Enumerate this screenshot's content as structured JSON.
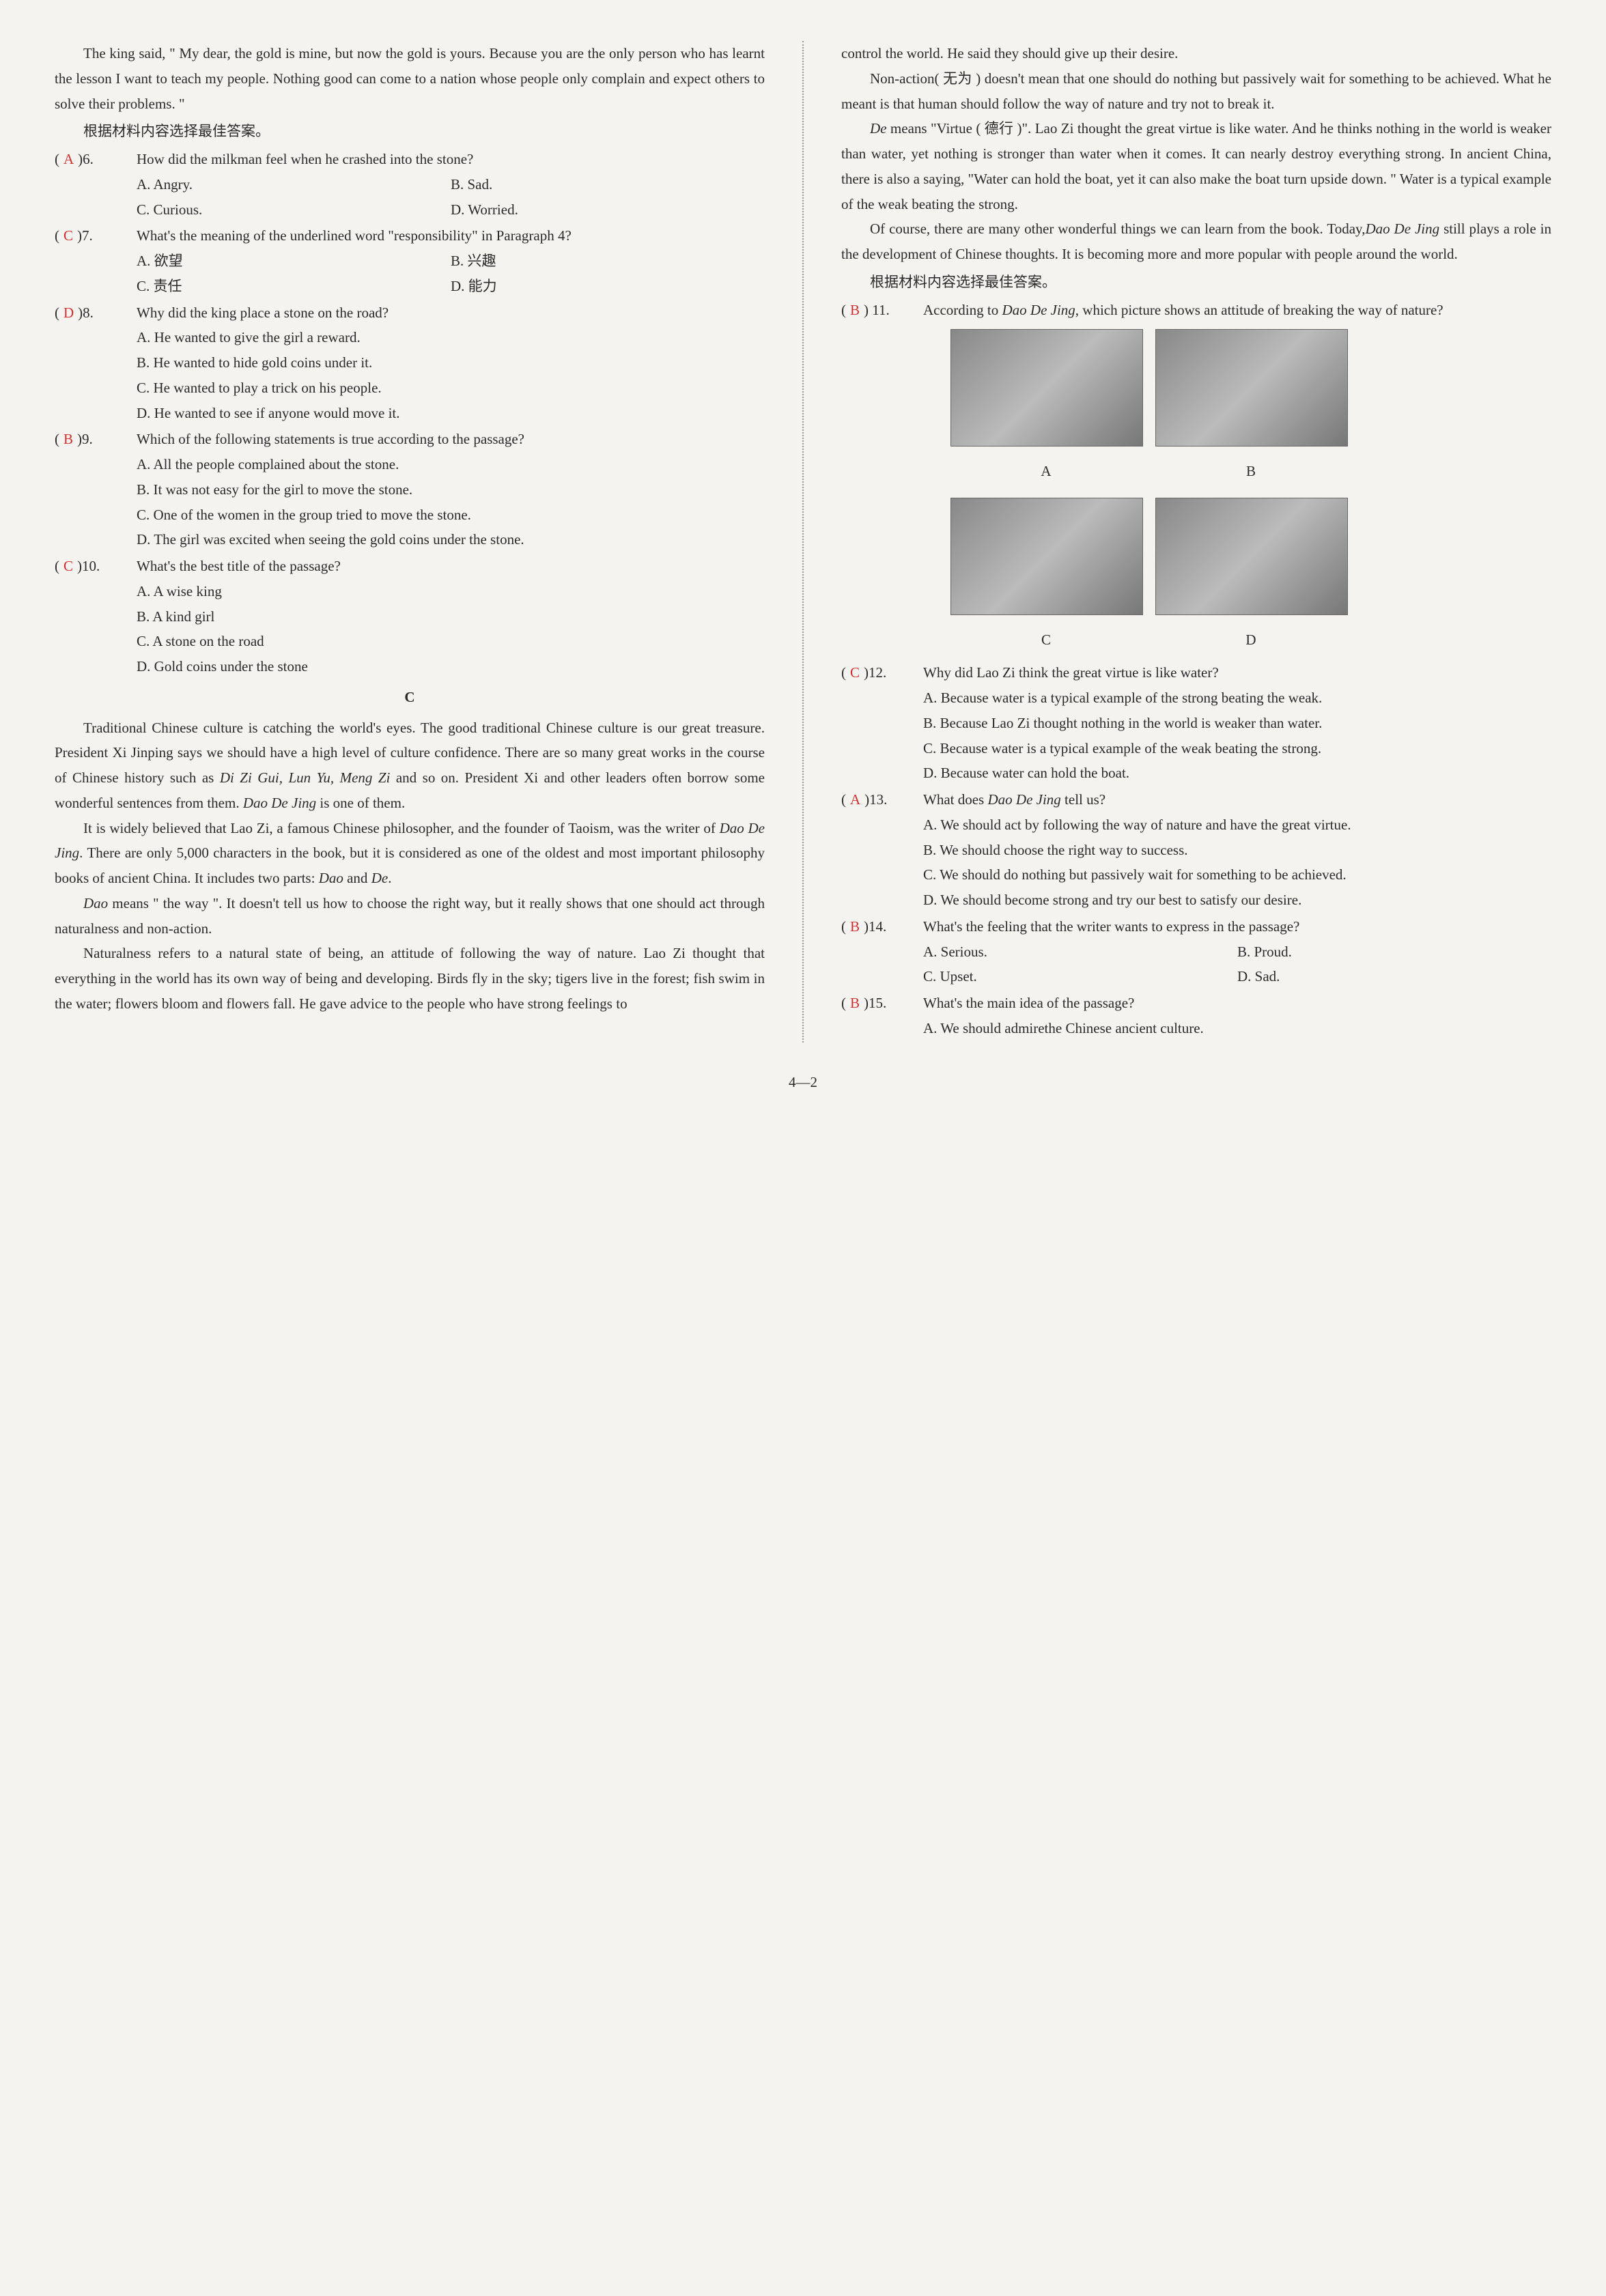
{
  "colors": {
    "answer_color": "#d03030",
    "text_color": "#2a2a2a",
    "background": "#f5f3f0",
    "divider_color": "#999999"
  },
  "typography": {
    "font_family": "Times New Roman",
    "body_fontsize_pt": 16,
    "line_height": 1.75
  },
  "left": {
    "passage_b_end": "The king said, \" My dear, the gold is mine, but now the gold is yours. Because you are the only person who has learnt the lesson I want to teach my people. Nothing good can come to a nation whose people only complain and expect others to solve their problems. \"",
    "instruction": "根据材料内容选择最佳答案。",
    "q6": {
      "answer": "A",
      "num": "6.",
      "stem": "How did the milkman feel when he crashed into the stone?",
      "a": "A. Angry.",
      "b": "B. Sad.",
      "c": "C. Curious.",
      "d": "D. Worried."
    },
    "q7": {
      "answer": "C",
      "num": "7.",
      "stem": "What's the meaning of the underlined word \"responsibility\" in Paragraph 4?",
      "a": "A. 欲望",
      "b": "B. 兴趣",
      "c": "C. 责任",
      "d": "D. 能力"
    },
    "q8": {
      "answer": "D",
      "num": "8.",
      "stem": "Why did the king place a stone on the road?",
      "a": "A. He wanted to give the girl a reward.",
      "b": "B. He wanted to hide gold coins under it.",
      "c": "C. He wanted to play a trick on his people.",
      "d": "D. He wanted to see if anyone would move it."
    },
    "q9": {
      "answer": "B",
      "num": "9.",
      "stem": "Which of the following statements is true according to the passage?",
      "a": "A. All the people complained about the stone.",
      "b": "B. It was not easy for the girl to move the stone.",
      "c": "C. One of the women in the group tried to move the stone.",
      "d": "D. The girl was excited when seeing the gold coins under the stone."
    },
    "q10": {
      "answer": "C",
      "num": "10.",
      "stem": "What's the best title of the passage?",
      "a": "A. A wise king",
      "b": "B. A kind girl",
      "c": "C. A stone on the road",
      "d": "D. Gold coins under the stone"
    },
    "section_c": "C",
    "passage_c_p1a": "Traditional Chinese culture is catching the world's eyes. The good traditional Chinese culture is our great treasure. President Xi Jinping says we should have a high level of culture confidence. There are so many great works in the course of Chinese history such as ",
    "passage_c_titles": "Di Zi Gui, Lun Yu, Meng Zi",
    "passage_c_p1b": " and so on. President Xi and other leaders often borrow some wonderful sentences from them. ",
    "passage_c_ddj1": "Dao De Jing",
    "passage_c_p1c": " is one of them.",
    "passage_c_p2a": "It is widely believed that Lao Zi, a famous Chinese philosopher, and the founder of Taoism, was the writer of ",
    "passage_c_ddj2": "Dao De Jing",
    "passage_c_p2b": ". There are only 5,000 characters in the book, but it is considered as one of the oldest and most important philosophy books of ancient China. It includes two parts: ",
    "passage_c_dao": "Dao",
    "passage_c_and": " and ",
    "passage_c_de": "De",
    "passage_c_period": ".",
    "passage_c_p3a": "Dao",
    "passage_c_p3b": " means \" the way \". It doesn't tell us how to choose the right way, but it really shows that one should act through naturalness and non-action.",
    "passage_c_p4": "Naturalness refers to a natural state of being, an attitude of following the way of nature. Lao Zi thought that everything in the world has its own way of being and developing. Birds fly in the sky; tigers live in the forest; fish swim in the water; flowers bloom and flowers fall. He gave advice to the people who have strong feelings to"
  },
  "right": {
    "passage_c_p4_cont": "control the world. He said they should give up their desire.",
    "passage_c_p5": "Non-action( 无为 ) doesn't mean that one should do nothing but passively wait for something to be achieved. What he meant is that human should follow the way of nature and try not to break it.",
    "passage_c_p6a": "De",
    "passage_c_p6b": " means \"Virtue ( 德行 )\". Lao Zi thought the great virtue is like water. And he thinks nothing in the world is weaker than water, yet nothing is stronger than water when it comes. It can nearly destroy everything strong. In ancient China, there is also a saying, \"Water can hold the boat, yet it can also make the boat turn upside down. \" Water is a typical example of the weak beating the strong.",
    "passage_c_p7a": "Of course, there are many other wonderful things we can learn from the book. Today,",
    "passage_c_ddj3": "Dao De Jing",
    "passage_c_p7b": " still plays a role in the development of Chinese thoughts. It is becoming more and more popular with people around the world.",
    "instruction": "根据材料内容选择最佳答案。",
    "q11": {
      "answer": "B",
      "num": "11.",
      "stem_a": "According to ",
      "stem_i": "Dao De Jing",
      "stem_b": ", which picture shows an attitude of breaking the way of nature?",
      "labels": {
        "a": "A",
        "b": "B",
        "c": "C",
        "d": "D"
      }
    },
    "q12": {
      "answer": "C",
      "num": "12.",
      "stem": "Why did Lao Zi think the great virtue is like water?",
      "a": "A. Because water is a typical example of the strong beating the weak.",
      "b": "B. Because Lao Zi thought nothing in the world is weaker than water.",
      "c": "C. Because water is a typical example of the weak beating the strong.",
      "d": "D. Because water can hold the boat."
    },
    "q13": {
      "answer": "A",
      "num": "13.",
      "stem_a": "What does ",
      "stem_i": "Dao De Jing",
      "stem_b": " tell us?",
      "a": "A. We should act by following the way of nature and have the great virtue.",
      "b": "B. We should choose the right way to success.",
      "c": "C. We should do nothing but passively wait for something to be achieved.",
      "d": "D. We should become strong and try our best to satisfy our desire."
    },
    "q14": {
      "answer": "B",
      "num": "14.",
      "stem": "What's the feeling that the writer wants to express in the passage?",
      "a": "A. Serious.",
      "b": "B. Proud.",
      "c": "C. Upset.",
      "d": "D. Sad."
    },
    "q15": {
      "answer": "B",
      "num": "15.",
      "stem": "What's the main idea of the passage?",
      "a": "A. We should admirethe Chinese ancient culture."
    }
  },
  "page_number": "4—2"
}
